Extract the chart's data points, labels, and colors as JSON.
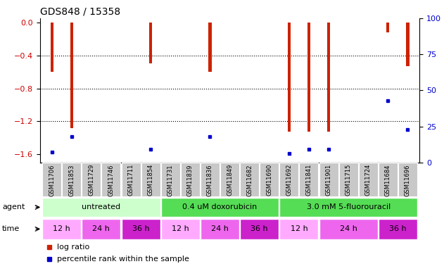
{
  "title": "GDS848 / 15358",
  "samples": [
    "GSM11706",
    "GSM11853",
    "GSM11729",
    "GSM11746",
    "GSM11711",
    "GSM11854",
    "GSM11731",
    "GSM11839",
    "GSM11836",
    "GSM11849",
    "GSM11682",
    "GSM11690",
    "GSM11692",
    "GSM11841",
    "GSM11901",
    "GSM11715",
    "GSM11724",
    "GSM11684",
    "GSM11696"
  ],
  "log_ratios": [
    -0.6,
    -1.28,
    0.0,
    0.0,
    0.0,
    -0.5,
    0.0,
    0.0,
    -0.6,
    0.0,
    0.0,
    0.0,
    -1.33,
    -1.33,
    -1.33,
    0.0,
    0.0,
    -0.12,
    -0.53
  ],
  "percentile_ranks": [
    7,
    18,
    0,
    0,
    0,
    9,
    0,
    0,
    18,
    0,
    0,
    0,
    6,
    9,
    9,
    0,
    0,
    43,
    23
  ],
  "ylim_left": [
    -1.7,
    0.05
  ],
  "ylim_right": [
    0,
    100
  ],
  "yticks_left": [
    0,
    -0.4,
    -0.8,
    -1.2,
    -1.6
  ],
  "yticks_right": [
    0,
    25,
    50,
    75,
    100
  ],
  "bar_color": "#cc2200",
  "dot_color": "#0000cc",
  "bar_width": 0.15,
  "agent_groups": [
    {
      "label": "untreated",
      "start": 0,
      "end": 6,
      "color": "#ccffcc"
    },
    {
      "label": "0.4 uM doxorubicin",
      "start": 6,
      "end": 12,
      "color": "#55dd55"
    },
    {
      "label": "3.0 mM 5-fluorouracil",
      "start": 12,
      "end": 19,
      "color": "#55dd55"
    }
  ],
  "time_groups": [
    {
      "label": "12 h",
      "start": 0,
      "end": 2,
      "color": "#ffaaff"
    },
    {
      "label": "24 h",
      "start": 2,
      "end": 4,
      "color": "#ee66ee"
    },
    {
      "label": "36 h",
      "start": 4,
      "end": 6,
      "color": "#cc22cc"
    },
    {
      "label": "12 h",
      "start": 6,
      "end": 8,
      "color": "#ffaaff"
    },
    {
      "label": "24 h",
      "start": 8,
      "end": 10,
      "color": "#ee66ee"
    },
    {
      "label": "36 h",
      "start": 10,
      "end": 12,
      "color": "#cc22cc"
    },
    {
      "label": "12 h",
      "start": 12,
      "end": 14,
      "color": "#ffaaff"
    },
    {
      "label": "24 h",
      "start": 14,
      "end": 17,
      "color": "#ee66ee"
    },
    {
      "label": "36 h",
      "start": 17,
      "end": 19,
      "color": "#cc22cc"
    }
  ],
  "left_axis_color": "#cc0000",
  "right_axis_color": "#0000cc",
  "sample_bg_color": "#c8c8c8",
  "grid_yticks": [
    -0.4,
    -0.8,
    -1.2
  ]
}
